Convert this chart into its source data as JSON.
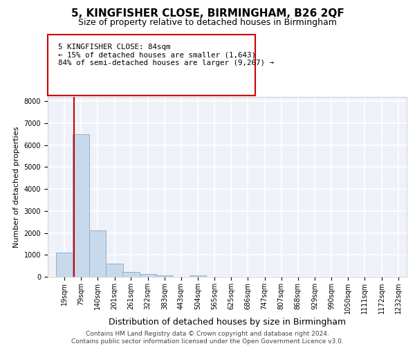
{
  "title": "5, KINGFISHER CLOSE, BIRMINGHAM, B26 2QF",
  "subtitle": "Size of property relative to detached houses in Birmingham",
  "xlabel": "Distribution of detached houses by size in Birmingham",
  "ylabel": "Number of detached properties",
  "footer_line1": "Contains HM Land Registry data © Crown copyright and database right 2024.",
  "footer_line2": "Contains public sector information licensed under the Open Government Licence v3.0.",
  "annotation_line1": "5 KINGFISHER CLOSE: 84sqm",
  "annotation_line2": "← 15% of detached houses are smaller (1,643)",
  "annotation_line3": "84% of semi-detached houses are larger (9,267) →",
  "bar_color": "#c9d9ec",
  "bar_edge_color": "#8ab0d0",
  "red_line_color": "#cc0000",
  "bin_left_edges": [
    19,
    79,
    140,
    201,
    261,
    322,
    383,
    443,
    504,
    565,
    625,
    686,
    747,
    807,
    868,
    929,
    990,
    1050,
    1111,
    1172
  ],
  "bin_labels": [
    "19sqm",
    "79sqm",
    "140sqm",
    "201sqm",
    "261sqm",
    "322sqm",
    "383sqm",
    "443sqm",
    "504sqm",
    "565sqm",
    "625sqm",
    "686sqm",
    "747sqm",
    "807sqm",
    "868sqm",
    "929sqm",
    "990sqm",
    "1050sqm",
    "1111sqm",
    "1172sqm",
    "1232sqm"
  ],
  "bar_heights": [
    1100,
    6500,
    2100,
    600,
    230,
    120,
    70,
    0,
    60,
    0,
    0,
    0,
    0,
    0,
    0,
    0,
    0,
    0,
    0,
    0
  ],
  "bin_width": 61,
  "ylim": [
    0,
    8200
  ],
  "yticks": [
    0,
    1000,
    2000,
    3000,
    4000,
    5000,
    6000,
    7000,
    8000
  ],
  "red_line_x": 84,
  "background_color": "#eef2f8",
  "grid_color": "#ffffff",
  "annotation_box_bg": "#ffffff",
  "annotation_box_edge": "#cc0000",
  "title_fontsize": 11,
  "subtitle_fontsize": 9,
  "ylabel_fontsize": 8,
  "xlabel_fontsize": 9,
  "tick_fontsize": 7,
  "footer_fontsize": 6.5
}
